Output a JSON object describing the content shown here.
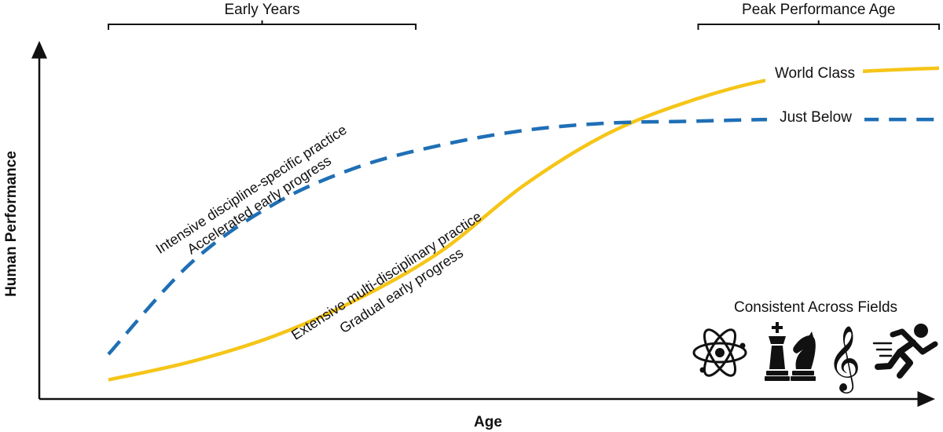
{
  "chart_data": {
    "type": "line",
    "title": "",
    "xlabel": "Age",
    "ylabel": "Human Performance",
    "grid": false,
    "colors": {
      "world_class": "#F5C518",
      "just_below": "#1F6FB5",
      "ink": "#111111"
    },
    "x": [
      0,
      10,
      20,
      30,
      40,
      50,
      60,
      70,
      80,
      90,
      100
    ],
    "series": [
      {
        "name": "World Class",
        "style": "solid",
        "color": "#F5C518",
        "values": [
          5,
          10,
          17,
          27,
          40,
          58,
          72,
          81,
          87,
          89,
          90
        ]
      },
      {
        "name": "Just Below",
        "style": "dashed",
        "color": "#1F6FB5",
        "values": [
          12,
          37,
          53,
          63,
          69,
          73,
          75,
          75.5,
          76,
          76,
          76
        ]
      }
    ],
    "xlim": [
      0,
      100
    ],
    "ylim": [
      0,
      100
    ],
    "brackets": [
      {
        "label": "Early Years",
        "x": [
          0,
          37
        ]
      },
      {
        "label": "Peak Performance Age",
        "x": [
          71,
          100
        ]
      }
    ],
    "annotations": {
      "dashed_upper": "Intensive discipline-specific practice",
      "dashed_lower": "Accelerated early progress",
      "solid_upper": "Extensive multi-disciplinary practice",
      "solid_lower": "Gradual early progress"
    },
    "fields_title": "Consistent Across Fields",
    "field_icons": [
      "atom-icon",
      "chess-icon",
      "treble-clef-icon",
      "runner-icon"
    ]
  }
}
